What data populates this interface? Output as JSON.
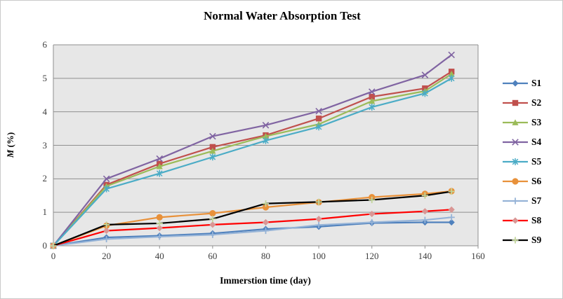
{
  "chart_data": {
    "type": "line",
    "title": "Normal Water Absorption Test",
    "xlabel": "Immerstion time (day)",
    "ylabel": "M (%)",
    "ylabel_parts": {
      "symbol": "M",
      "unit": " (%)"
    },
    "xlim": [
      0,
      160
    ],
    "ylim": [
      0,
      6
    ],
    "x_ticks": [
      0,
      20,
      40,
      60,
      80,
      100,
      120,
      140,
      160
    ],
    "y_ticks": [
      0,
      1,
      2,
      3,
      4,
      5,
      6
    ],
    "grid": "horizontal",
    "legend_position": "right",
    "plot_bg": "#e7e7e7",
    "grid_color": "#8f8f8f",
    "x": [
      0,
      20,
      40,
      60,
      80,
      100,
      120,
      140,
      150
    ],
    "series": [
      {
        "name": "S1",
        "color": "#4f81bd",
        "marker": "diamond",
        "marker_color": "#4f81bd",
        "values": [
          0,
          0.25,
          0.3,
          0.37,
          0.5,
          0.57,
          0.68,
          0.7,
          0.7
        ]
      },
      {
        "name": "S2",
        "color": "#c0504d",
        "marker": "square",
        "marker_color": "#c0504d",
        "values": [
          0,
          1.82,
          2.45,
          2.95,
          3.3,
          3.8,
          4.45,
          4.7,
          5.2
        ]
      },
      {
        "name": "S3",
        "color": "#9bbb59",
        "marker": "triangle",
        "marker_color": "#9bbb59",
        "values": [
          0,
          1.78,
          2.37,
          2.83,
          3.27,
          3.63,
          4.32,
          4.62,
          5.13
        ]
      },
      {
        "name": "S4",
        "color": "#8064a2",
        "marker": "x",
        "marker_color": "#8064a2",
        "values": [
          0,
          2.0,
          2.6,
          3.27,
          3.6,
          4.02,
          4.6,
          5.1,
          5.7
        ]
      },
      {
        "name": "S5",
        "color": "#4bacc6",
        "marker": "asterisk",
        "marker_color": "#4bacc6",
        "values": [
          0,
          1.7,
          2.16,
          2.65,
          3.14,
          3.55,
          4.14,
          4.55,
          5.0
        ]
      },
      {
        "name": "S6",
        "color": "#e8913a",
        "marker": "circle",
        "marker_color": "#e8913a",
        "values": [
          0,
          0.6,
          0.85,
          0.97,
          1.15,
          1.3,
          1.45,
          1.55,
          1.63
        ]
      },
      {
        "name": "S7",
        "color": "#95b3d7",
        "marker": "plus",
        "marker_color": "#95b3d7",
        "values": [
          0,
          0.2,
          0.27,
          0.33,
          0.45,
          0.62,
          0.7,
          0.77,
          0.85
        ]
      },
      {
        "name": "S8",
        "color": "#ff0000",
        "marker": "diamond",
        "marker_color": "#d99694",
        "values": [
          0,
          0.45,
          0.53,
          0.63,
          0.7,
          0.8,
          0.95,
          1.03,
          1.08
        ]
      },
      {
        "name": "S9",
        "color": "#000000",
        "marker": "plus",
        "marker_color": "#c3d69b",
        "values": [
          0,
          0.63,
          0.67,
          0.8,
          1.26,
          1.31,
          1.37,
          1.5,
          1.62
        ]
      }
    ]
  }
}
